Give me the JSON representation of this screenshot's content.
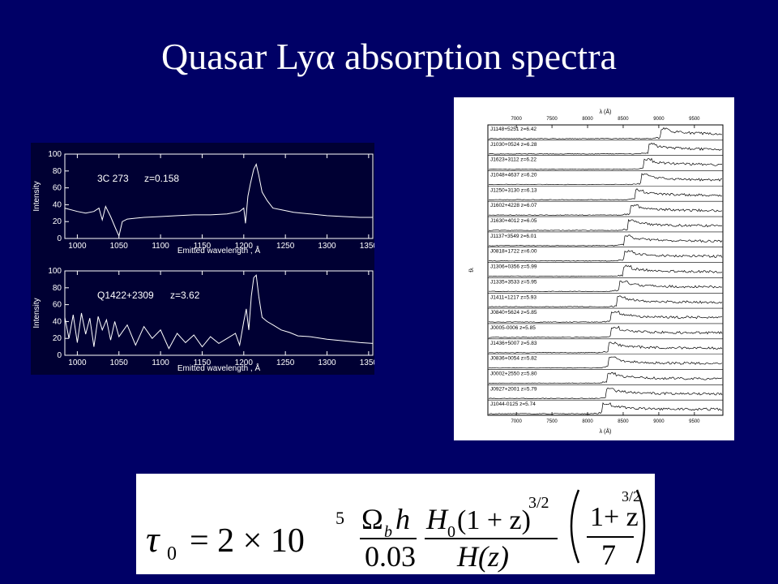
{
  "slide": {
    "title": "Quasar Lyα absorption spectra"
  },
  "chart_data": [
    {
      "type": "line",
      "annotation_name": "3C 273",
      "annotation_z": "z=0.158",
      "ylabel": "Intensity",
      "xlabel": "Emitted wavelength , Å",
      "xlim": [
        985,
        1355
      ],
      "ylim": [
        0,
        100
      ],
      "xticks": [
        1000,
        1050,
        1100,
        1150,
        1200,
        1250,
        1300,
        1350
      ],
      "yticks": [
        0,
        20,
        40,
        60,
        80,
        100
      ],
      "grid": false,
      "series": [
        {
          "x": [
            985,
            1000,
            1010,
            1020,
            1026,
            1030,
            1034,
            1040,
            1046,
            1050,
            1054,
            1060,
            1070,
            1080,
            1100,
            1120,
            1140,
            1160,
            1180,
            1195,
            1200,
            1202,
            1205,
            1208,
            1212,
            1215,
            1218,
            1222,
            1228,
            1235,
            1245,
            1260,
            1280,
            1300,
            1320,
            1340,
            1355
          ],
          "y": [
            36,
            32,
            30,
            32,
            36,
            22,
            38,
            26,
            12,
            3,
            20,
            23,
            24,
            25,
            26,
            27,
            28,
            28,
            29,
            32,
            36,
            18,
            50,
            65,
            82,
            88,
            75,
            55,
            45,
            36,
            34,
            31,
            29,
            27,
            26,
            25,
            25
          ]
        }
      ]
    },
    {
      "type": "line",
      "annotation_name": "Q1422+2309",
      "annotation_z": "z=3.62",
      "ylabel": "Intensity",
      "xlabel": "Emitted wavelength , Å",
      "xlim": [
        985,
        1355
      ],
      "ylim": [
        0,
        100
      ],
      "xticks": [
        1000,
        1050,
        1100,
        1150,
        1200,
        1250,
        1300,
        1350
      ],
      "yticks": [
        0,
        20,
        40,
        60,
        80,
        100
      ],
      "grid": false,
      "series": [
        {
          "x": [
            985,
            990,
            995,
            1000,
            1005,
            1010,
            1015,
            1020,
            1025,
            1030,
            1035,
            1040,
            1045,
            1050,
            1060,
            1070,
            1080,
            1090,
            1100,
            1110,
            1120,
            1130,
            1140,
            1150,
            1160,
            1170,
            1180,
            1190,
            1195,
            1200,
            1203,
            1206,
            1209,
            1212,
            1215,
            1218,
            1222,
            1228,
            1235,
            1245,
            1255,
            1265,
            1280,
            1300,
            1320,
            1340,
            1355
          ],
          "y": [
            45,
            20,
            48,
            15,
            50,
            25,
            44,
            10,
            46,
            30,
            42,
            18,
            40,
            22,
            36,
            12,
            34,
            20,
            30,
            8,
            26,
            15,
            24,
            10,
            22,
            14,
            20,
            26,
            12,
            40,
            55,
            30,
            70,
            92,
            95,
            70,
            45,
            40,
            36,
            30,
            27,
            23,
            22,
            19,
            17,
            15,
            14
          ]
        }
      ]
    },
    {
      "type": "line",
      "xlabel": "λ (Å)",
      "ylabel": "fλ",
      "xlim": [
        6600,
        9900
      ],
      "xticks": [
        7000,
        7500,
        8000,
        8500,
        9000,
        9500
      ],
      "grid": false,
      "series": [
        {
          "name": "J1148+5251 z=6.42",
          "onset": 9020
        },
        {
          "name": "J1030+0524 z=6.28",
          "onset": 8850
        },
        {
          "name": "J1623+3112 z=6.22",
          "onset": 8780
        },
        {
          "name": "J1048+4637 z=6.20",
          "onset": 8750
        },
        {
          "name": "J1250+3130 z=6.13",
          "onset": 8670
        },
        {
          "name": "J1602+4228 z=6.07",
          "onset": 8600
        },
        {
          "name": "J1630+4012 z=6.05",
          "onset": 8570
        },
        {
          "name": "J1137+3549 z=6.01",
          "onset": 8520
        },
        {
          "name": "J0818+1722 z=6.00",
          "onset": 8510
        },
        {
          "name": "J1306+0356 z=5.99",
          "onset": 8500
        },
        {
          "name": "J1335+3533 z=5.95",
          "onset": 8450
        },
        {
          "name": "J1411+1217 z=5.93",
          "onset": 8420
        },
        {
          "name": "J0840+5624 z=5.85",
          "onset": 8330
        },
        {
          "name": "J0005-0006 z=5.85",
          "onset": 8330
        },
        {
          "name": "J1436+5007 z=5.83",
          "onset": 8300
        },
        {
          "name": "J0836+0054 z=5.82",
          "onset": 8290
        },
        {
          "name": "J0002+2550 z=5.80",
          "onset": 8270
        },
        {
          "name": "J0927+2001 z=5.79",
          "onset": 8260
        },
        {
          "name": "J1044-0125 z=5.74",
          "onset": 8200
        }
      ]
    }
  ],
  "formula": {
    "lhs": "τ",
    "lhs_sub": "0",
    "eq": "= 2 × 10",
    "exp": "5",
    "frac1_num": "Ωbh",
    "frac1_num_main": "Ω",
    "frac1_num_sub": "b",
    "frac1_num_tail": "h",
    "frac1_den": "0.03",
    "frac2_num": "H0(1+z)3/2",
    "frac2_num_h": "H",
    "frac2_num_sub": "0",
    "frac2_num_mid": "(1 + z)",
    "frac2_num_exp": "3/2",
    "frac2_den": "H(z)",
    "frac3_num": "1+ z",
    "frac3_den": "7",
    "outer_exp": "3/2"
  }
}
